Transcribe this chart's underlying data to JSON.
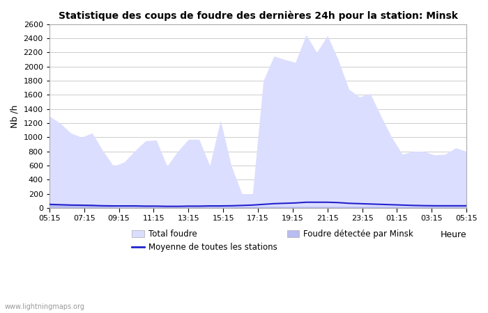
{
  "title": "Statistique des coups de foudre des dernières 24h pour la station: Minsk",
  "xlabel": "Heure",
  "ylabel": "Nb /h",
  "watermark": "www.lightningmaps.org",
  "ylim": [
    0,
    2600
  ],
  "yticks": [
    0,
    200,
    400,
    600,
    800,
    1000,
    1200,
    1400,
    1600,
    1800,
    2000,
    2200,
    2400,
    2600
  ],
  "xtick_labels": [
    "05:15",
    "07:15",
    "09:15",
    "11:15",
    "13:15",
    "15:15",
    "17:15",
    "19:15",
    "21:15",
    "23:15",
    "01:15",
    "03:15",
    "05:15"
  ],
  "legend": [
    "Total foudre",
    "Moyenne de toutes les stations",
    "Foudre détectée par Minsk"
  ],
  "color_total": "#dcdeff",
  "color_minsk": "#b8bcf0",
  "color_moyenne": "#2222cc",
  "background_color": "#ffffff",
  "grid_color": "#cccccc",
  "total_foudre": [
    1300,
    1200,
    1060,
    1000,
    1060,
    810,
    590,
    650,
    810,
    950,
    960,
    590,
    800,
    970,
    970,
    600,
    1240,
    600,
    200,
    200,
    1800,
    2150,
    2100,
    2060,
    2450,
    2200,
    2440,
    2100,
    1680,
    1570,
    1620,
    1300,
    1000,
    760,
    800,
    800,
    750,
    760,
    850,
    800
  ],
  "foudre_minsk": [
    50,
    50,
    50,
    50,
    50,
    30,
    20,
    20,
    20,
    20,
    20,
    20,
    20,
    20,
    20,
    20,
    20,
    20,
    20,
    20,
    20,
    20,
    20,
    20,
    20,
    20,
    20,
    20,
    20,
    20,
    20,
    20,
    20,
    20,
    20,
    20,
    20,
    20,
    20,
    20
  ],
  "moyenne": [
    50,
    45,
    40,
    38,
    35,
    30,
    28,
    28,
    28,
    25,
    25,
    22,
    22,
    25,
    25,
    28,
    28,
    30,
    35,
    40,
    50,
    60,
    65,
    70,
    80,
    80,
    80,
    75,
    65,
    60,
    55,
    50,
    45,
    40,
    35,
    32,
    30,
    30,
    30,
    30
  ]
}
